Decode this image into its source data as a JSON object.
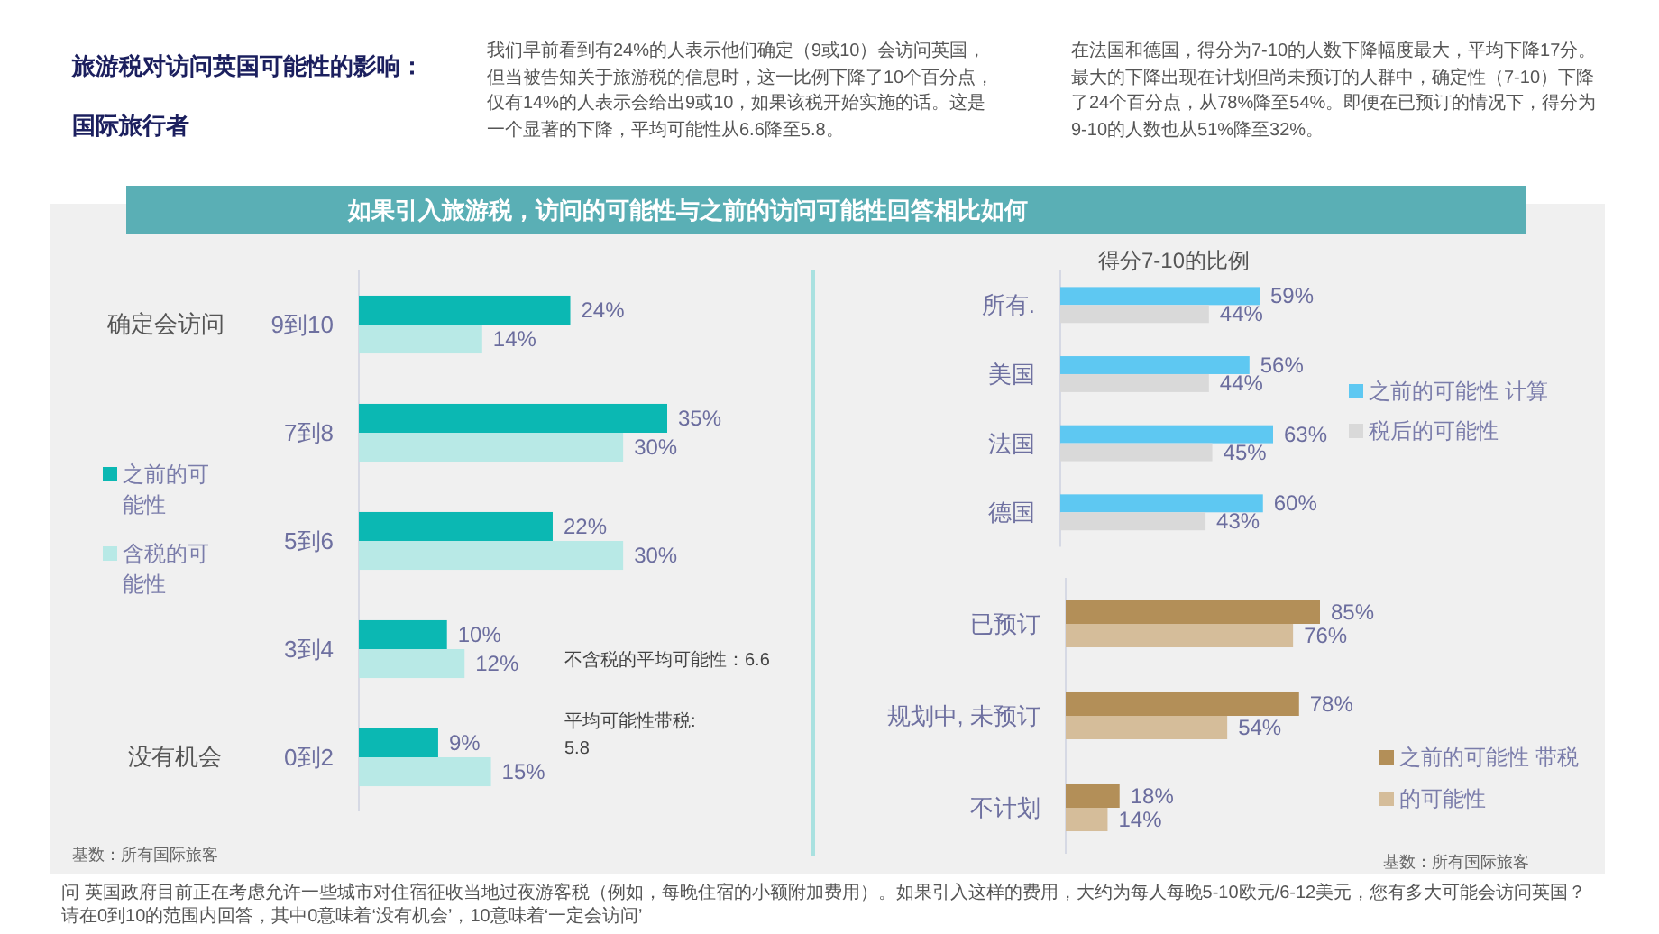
{
  "chart_data": [
    {
      "type": "bar",
      "orientation": "horizontal",
      "title": "旅游税对访问英国可能性的影响：",
      "subtitle": "国际旅行者",
      "categories": [
        "9到10",
        "7到8",
        "5到6",
        "3到4",
        "0到2"
      ],
      "series": [
        {
          "name": "之前的可能性",
          "color": "#0bb8b3",
          "values": [
            24,
            35,
            22,
            10,
            9
          ],
          "value_labels": [
            "24%",
            "35%",
            "22%",
            "10%",
            "9%"
          ]
        },
        {
          "name": "含税的可能性",
          "color": "#b8e9e6",
          "values": [
            14,
            30,
            30,
            12,
            15
          ],
          "value_labels": [
            "14%",
            "30%",
            "30%",
            "12%",
            "15%"
          ]
        }
      ],
      "legend": "left",
      "annotations": [
        "我们早前看到有24%的人表示他们确定（9或10）会访问英国，但当被告知关于旅游税的信息时，这一比例下降了10个百分点，仅有14%的人表示会给出9或10，如果该税开始实施的话。这是一个显著的下降，平均可能性从6.6降至5.8。",
        "在法国和德国，得分为7-10的人数下降幅度最大，平均下降17分。最大的下降出现在计划但尚未预订的人群中，确定性（7-10）下降了24个百分点，从78%降至54%。即便在已预订的情况下，得分为9-10的人数也从51%降至32%。",
        "如果引入旅游税，访问的可能性与之前的访问可能性回答相比如何",
        "确定会访问",
        "没有机会",
        "不含税的平均可能性：6.6",
        "平均可能性带税: 5.8",
        "基数：所有国际旅客",
        "问 英国政府目前正在考虑允许一些城市对住宿征收当地过夜游客税（例如，每晚住宿的小额附加费用）。如果引入这样的费用，大约为每人每晚5-10欧元/6-12美元，您有多大可能会访问英国？请在0到10的范围内回答，其中0意味着‘没有机会’，10意味着‘一定会访问’"
      ]
    },
    {
      "type": "bar",
      "orientation": "horizontal",
      "title": "得分7-10的比例",
      "categories": [
        "所有.",
        "美国",
        "法国",
        "德国"
      ],
      "series": [
        {
          "name": "之前的可能性 计算",
          "color": "#5ec8f2",
          "values": [
            59,
            56,
            63,
            60
          ],
          "value_labels": [
            "59%",
            "56%",
            "63%",
            "60%"
          ]
        },
        {
          "name": "税后的可能性",
          "color": "#d9d9d9",
          "values": [
            44,
            44,
            45,
            43
          ],
          "value_labels": [
            "44%",
            "44%",
            "45%",
            "43%"
          ]
        }
      ],
      "legend": "right"
    },
    {
      "type": "bar",
      "orientation": "horizontal",
      "categories": [
        "已预订",
        "规划中, 未预订",
        "不计划"
      ],
      "series": [
        {
          "name": "之前的可能性 带税",
          "color": "#b38f58",
          "values": [
            85,
            78,
            18
          ],
          "value_labels": [
            "85%",
            "78%",
            "18%"
          ]
        },
        {
          "name": "的可能性",
          "color": "#d5bd9a",
          "values": [
            76,
            54,
            14
          ],
          "value_labels": [
            "76%",
            "54%",
            "14%"
          ]
        }
      ],
      "legend": "right",
      "annotations": [
        "基数：所有国际旅客"
      ]
    }
  ]
}
